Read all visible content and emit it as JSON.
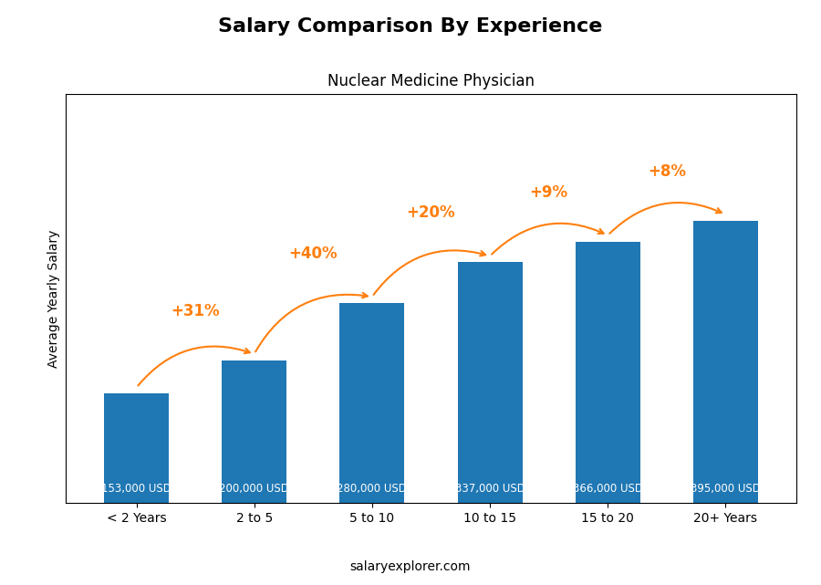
{
  "chart_data": {
    "type": "bar",
    "title": "Salary Comparison By Experience",
    "subtitle": "Nuclear Medicine Physician",
    "categories": [
      "< 2 Years",
      "2 to 5",
      "5 to 10",
      "10 to 15",
      "15 to 20",
      "20+ Years"
    ],
    "values": [
      153000,
      200000,
      280000,
      337000,
      366000,
      395000
    ],
    "value_labels": [
      "153,000 USD",
      "200,000 USD",
      "280,000 USD",
      "337,000 USD",
      "366,000 USD",
      "395,000 USD"
    ],
    "data_labels": true,
    "change_labels": [
      "+31%",
      "+40%",
      "+20%",
      "+9%",
      "+8%"
    ],
    "y_label": "Average Yearly Salary",
    "source": "salaryexplorer.com",
    "ylim": [
      0,
      572750
    ],
    "tick_labels": "x",
    "grid": false
  }
}
